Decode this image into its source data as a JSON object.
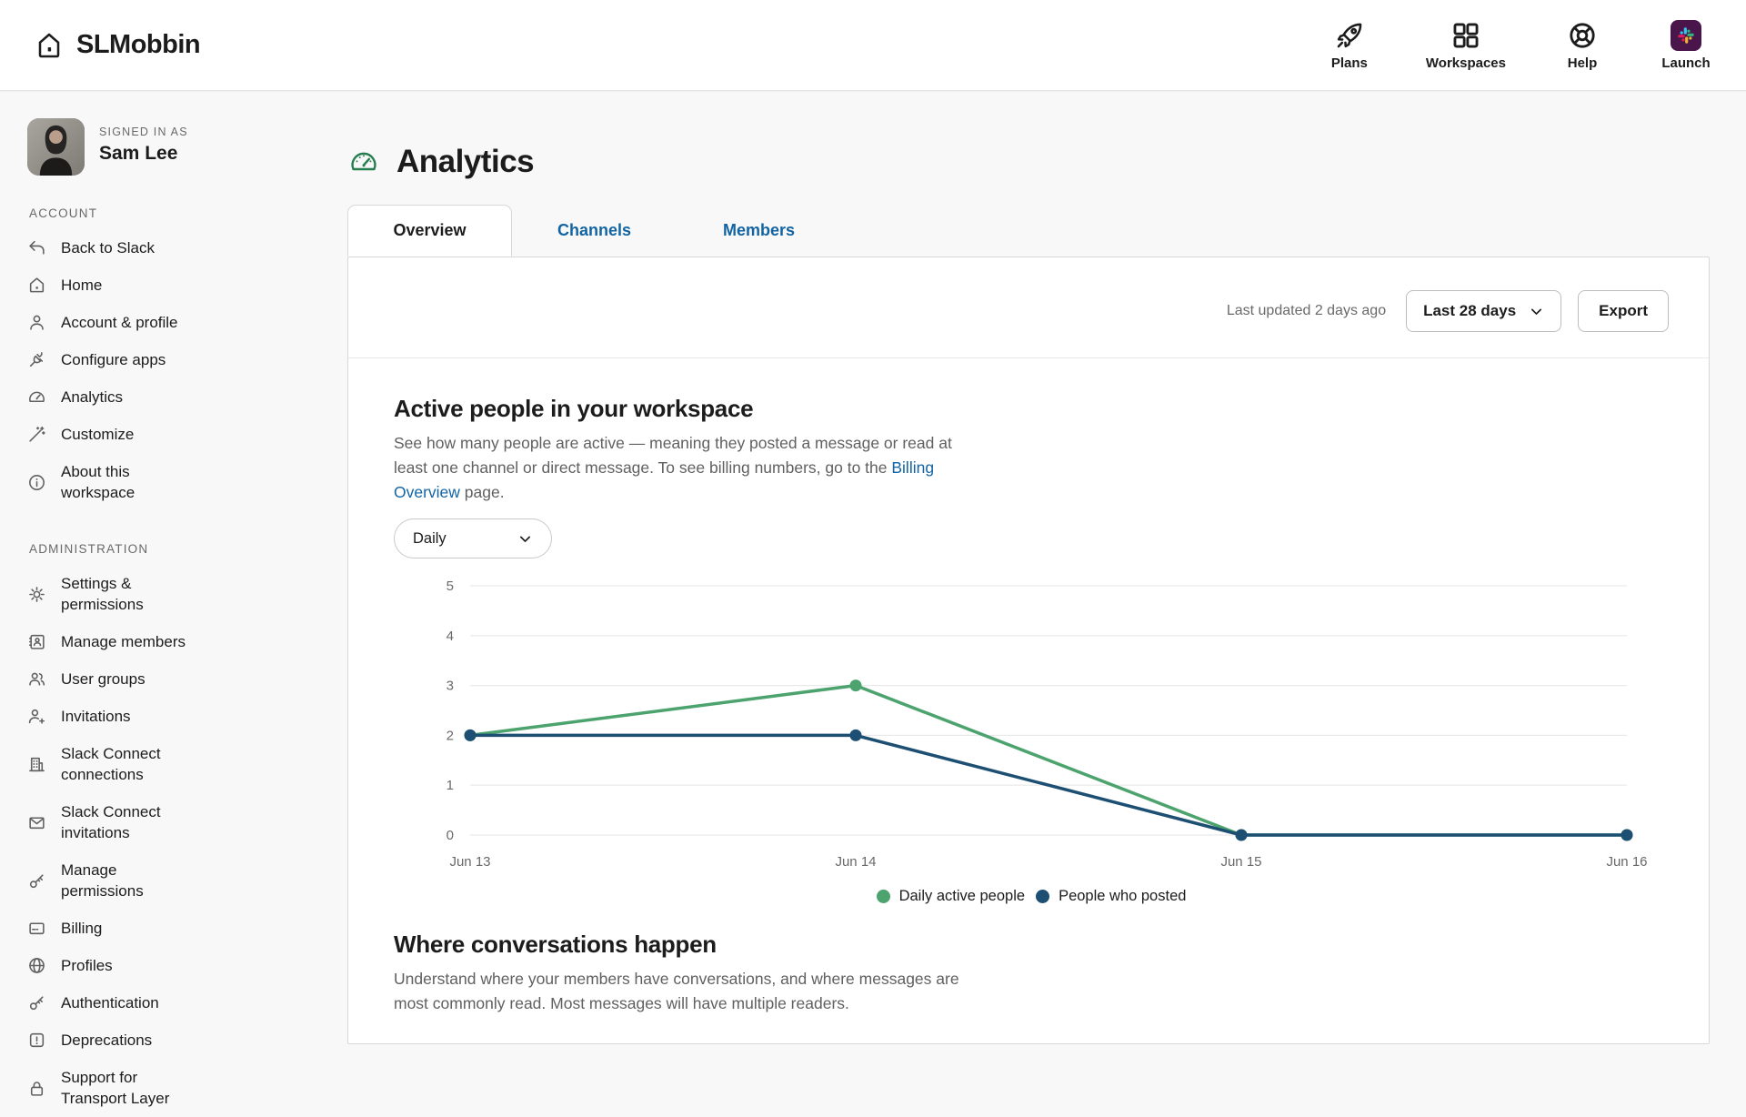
{
  "header": {
    "brand": "SLMobbin",
    "nav": [
      {
        "label": "Plans",
        "icon": "rocket-icon"
      },
      {
        "label": "Workspaces",
        "icon": "grid-icon"
      },
      {
        "label": "Help",
        "icon": "help-icon"
      },
      {
        "label": "Launch",
        "icon": "slack-logo-icon"
      }
    ]
  },
  "sidebar": {
    "signed_in_as_label": "SIGNED IN AS",
    "user_name": "Sam Lee",
    "sections": [
      {
        "heading": "ACCOUNT",
        "items": [
          {
            "label": "Back to Slack",
            "icon": "back-arrow-icon"
          },
          {
            "label": "Home",
            "icon": "home-icon"
          },
          {
            "label": "Account & profile",
            "icon": "person-icon"
          },
          {
            "label": "Configure apps",
            "icon": "plug-icon"
          },
          {
            "label": "Analytics",
            "icon": "gauge-icon"
          },
          {
            "label": "Customize",
            "icon": "wand-icon"
          },
          {
            "label": "About this workspace",
            "icon": "info-icon"
          }
        ]
      },
      {
        "heading": "ADMINISTRATION",
        "items": [
          {
            "label": "Settings & permissions",
            "icon": "gear-icon"
          },
          {
            "label": "Manage members",
            "icon": "id-badge-icon"
          },
          {
            "label": "User groups",
            "icon": "users-icon"
          },
          {
            "label": "Invitations",
            "icon": "person-plus-icon"
          },
          {
            "label": "Slack Connect connections",
            "icon": "building-icon"
          },
          {
            "label": "Slack Connect invitations",
            "icon": "envelope-icon"
          },
          {
            "label": "Manage permissions",
            "icon": "key-icon"
          },
          {
            "label": "Billing",
            "icon": "credit-card-icon"
          },
          {
            "label": "Profiles",
            "icon": "globe-icon"
          },
          {
            "label": "Authentication",
            "icon": "key-icon"
          },
          {
            "label": "Deprecations",
            "icon": "alert-square-icon"
          },
          {
            "label": "Support for Transport Layer",
            "icon": "lock-icon"
          }
        ]
      }
    ]
  },
  "page": {
    "title": "Analytics",
    "tabs": [
      {
        "label": "Overview",
        "active": true
      },
      {
        "label": "Channels",
        "active": false
      },
      {
        "label": "Members",
        "active": false
      }
    ],
    "toolbar": {
      "last_updated": "Last updated 2 days ago",
      "range_label": "Last 28 days",
      "export_label": "Export"
    }
  },
  "active_people": {
    "title": "Active people in your workspace",
    "description_part1": "See how many people are active — meaning they posted a message or read at least one channel or direct message. To see billing numbers, go to the ",
    "link_text": "Billing Overview",
    "description_part2": " page.",
    "frequency_label": "Daily"
  },
  "chart_data": {
    "type": "line",
    "title": "Active people in your workspace",
    "categories": [
      "Jun 13",
      "Jun 14",
      "Jun 15",
      "Jun 16"
    ],
    "series": [
      {
        "name": "Daily active people",
        "color": "#4CA36E",
        "values": [
          2,
          3,
          0,
          0
        ]
      },
      {
        "name": "People who posted",
        "color": "#1D4F73",
        "values": [
          2,
          2,
          0,
          0
        ]
      }
    ],
    "ylim": [
      0,
      5
    ],
    "yticks": [
      0,
      1,
      2,
      3,
      4,
      5
    ],
    "grid": true,
    "legend_position": "bottom"
  },
  "conversations": {
    "title": "Where conversations happen",
    "description": "Understand where your members have conversations, and where messages are most commonly read. Most messages will have multiple readers."
  },
  "colors": {
    "accent_link_blue": "#1264a3",
    "title_gauge_green": "#267d4e",
    "line_green": "#4CA36E",
    "line_blue": "#1D4F73",
    "slack_logo_bg": "#4a154b",
    "slack_blue": "#36c5f0",
    "slack_green": "#2eb67d",
    "slack_yellow": "#ecb22e",
    "slack_red": "#e01e5a",
    "page_bg": "#f8f8f8"
  }
}
